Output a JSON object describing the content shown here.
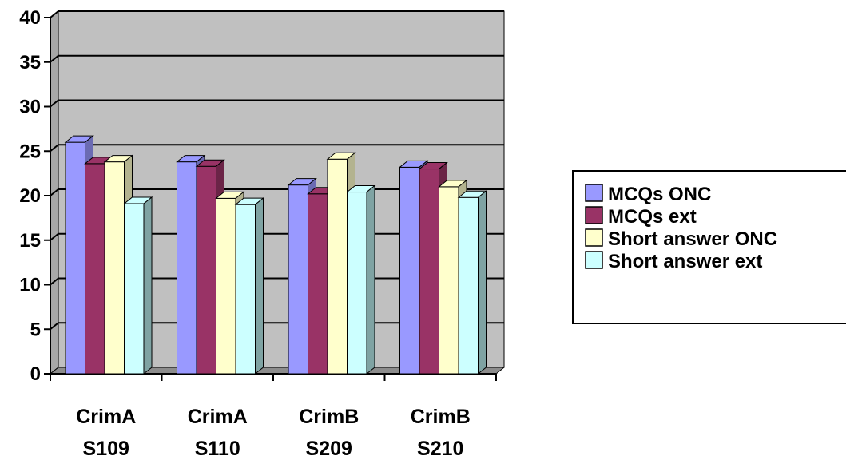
{
  "chart_data": {
    "type": "bar",
    "categories": [
      [
        "CrimA",
        "S109"
      ],
      [
        "CrimA",
        "S110"
      ],
      [
        "CrimB",
        "S209"
      ],
      [
        "CrimB",
        "S210"
      ]
    ],
    "series": [
      {
        "name": "MCQs ONC",
        "values": [
          26,
          23.8,
          21.2,
          23.2
        ],
        "color": "#9999ff",
        "dark": "#6b6bb3"
      },
      {
        "name": "MCQs ext",
        "values": [
          23.6,
          23.3,
          20.2,
          23
        ],
        "color": "#993366",
        "dark": "#6b2447"
      },
      {
        "name": "Short answer ONC",
        "values": [
          23.8,
          19.7,
          24.1,
          21
        ],
        "color": "#ffffcc",
        "dark": "#b3b38f"
      },
      {
        "name": "Short answer ext",
        "values": [
          19.1,
          19,
          20.4,
          19.8
        ],
        "color": "#ccffff",
        "dark": "#7fa3a3"
      }
    ],
    "ylim": [
      0,
      40
    ],
    "yticks": [
      0,
      5,
      10,
      15,
      20,
      25,
      30,
      35,
      40
    ],
    "grid": true,
    "style": "3d-clustered-column",
    "plot_background": "#c0c0c0",
    "legend_position": "right"
  }
}
